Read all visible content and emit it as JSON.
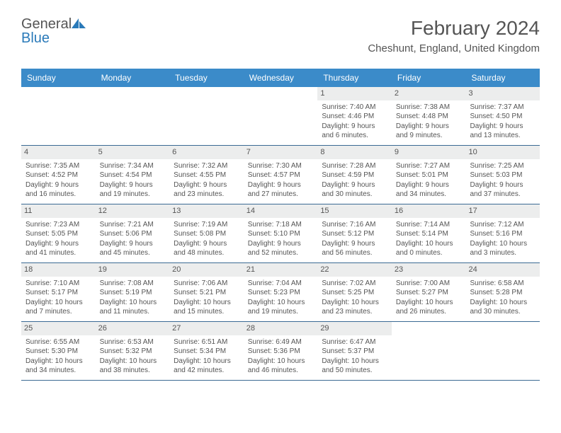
{
  "logo": {
    "word1": "General",
    "word2": "Blue"
  },
  "header": {
    "title": "February 2024",
    "location": "Cheshunt, England, United Kingdom"
  },
  "dayNames": [
    "Sunday",
    "Monday",
    "Tuesday",
    "Wednesday",
    "Thursday",
    "Friday",
    "Saturday"
  ],
  "colors": {
    "headerBar": "#3b8bc9",
    "rowDivider": "#3b6a94",
    "dayNumberBg": "#eceded",
    "text": "#555555",
    "logoBlue": "#2a7ab9"
  },
  "days": [
    {
      "n": 1,
      "sunrise": "7:40 AM",
      "sunset": "4:46 PM",
      "daylight": "9 hours and 6 minutes."
    },
    {
      "n": 2,
      "sunrise": "7:38 AM",
      "sunset": "4:48 PM",
      "daylight": "9 hours and 9 minutes."
    },
    {
      "n": 3,
      "sunrise": "7:37 AM",
      "sunset": "4:50 PM",
      "daylight": "9 hours and 13 minutes."
    },
    {
      "n": 4,
      "sunrise": "7:35 AM",
      "sunset": "4:52 PM",
      "daylight": "9 hours and 16 minutes."
    },
    {
      "n": 5,
      "sunrise": "7:34 AM",
      "sunset": "4:54 PM",
      "daylight": "9 hours and 19 minutes."
    },
    {
      "n": 6,
      "sunrise": "7:32 AM",
      "sunset": "4:55 PM",
      "daylight": "9 hours and 23 minutes."
    },
    {
      "n": 7,
      "sunrise": "7:30 AM",
      "sunset": "4:57 PM",
      "daylight": "9 hours and 27 minutes."
    },
    {
      "n": 8,
      "sunrise": "7:28 AM",
      "sunset": "4:59 PM",
      "daylight": "9 hours and 30 minutes."
    },
    {
      "n": 9,
      "sunrise": "7:27 AM",
      "sunset": "5:01 PM",
      "daylight": "9 hours and 34 minutes."
    },
    {
      "n": 10,
      "sunrise": "7:25 AM",
      "sunset": "5:03 PM",
      "daylight": "9 hours and 37 minutes."
    },
    {
      "n": 11,
      "sunrise": "7:23 AM",
      "sunset": "5:05 PM",
      "daylight": "9 hours and 41 minutes."
    },
    {
      "n": 12,
      "sunrise": "7:21 AM",
      "sunset": "5:06 PM",
      "daylight": "9 hours and 45 minutes."
    },
    {
      "n": 13,
      "sunrise": "7:19 AM",
      "sunset": "5:08 PM",
      "daylight": "9 hours and 48 minutes."
    },
    {
      "n": 14,
      "sunrise": "7:18 AM",
      "sunset": "5:10 PM",
      "daylight": "9 hours and 52 minutes."
    },
    {
      "n": 15,
      "sunrise": "7:16 AM",
      "sunset": "5:12 PM",
      "daylight": "9 hours and 56 minutes."
    },
    {
      "n": 16,
      "sunrise": "7:14 AM",
      "sunset": "5:14 PM",
      "daylight": "10 hours and 0 minutes."
    },
    {
      "n": 17,
      "sunrise": "7:12 AM",
      "sunset": "5:16 PM",
      "daylight": "10 hours and 3 minutes."
    },
    {
      "n": 18,
      "sunrise": "7:10 AM",
      "sunset": "5:17 PM",
      "daylight": "10 hours and 7 minutes."
    },
    {
      "n": 19,
      "sunrise": "7:08 AM",
      "sunset": "5:19 PM",
      "daylight": "10 hours and 11 minutes."
    },
    {
      "n": 20,
      "sunrise": "7:06 AM",
      "sunset": "5:21 PM",
      "daylight": "10 hours and 15 minutes."
    },
    {
      "n": 21,
      "sunrise": "7:04 AM",
      "sunset": "5:23 PM",
      "daylight": "10 hours and 19 minutes."
    },
    {
      "n": 22,
      "sunrise": "7:02 AM",
      "sunset": "5:25 PM",
      "daylight": "10 hours and 23 minutes."
    },
    {
      "n": 23,
      "sunrise": "7:00 AM",
      "sunset": "5:27 PM",
      "daylight": "10 hours and 26 minutes."
    },
    {
      "n": 24,
      "sunrise": "6:58 AM",
      "sunset": "5:28 PM",
      "daylight": "10 hours and 30 minutes."
    },
    {
      "n": 25,
      "sunrise": "6:55 AM",
      "sunset": "5:30 PM",
      "daylight": "10 hours and 34 minutes."
    },
    {
      "n": 26,
      "sunrise": "6:53 AM",
      "sunset": "5:32 PM",
      "daylight": "10 hours and 38 minutes."
    },
    {
      "n": 27,
      "sunrise": "6:51 AM",
      "sunset": "5:34 PM",
      "daylight": "10 hours and 42 minutes."
    },
    {
      "n": 28,
      "sunrise": "6:49 AM",
      "sunset": "5:36 PM",
      "daylight": "10 hours and 46 minutes."
    },
    {
      "n": 29,
      "sunrise": "6:47 AM",
      "sunset": "5:37 PM",
      "daylight": "10 hours and 50 minutes."
    }
  ],
  "layout": {
    "firstWeekday": 4,
    "labels": {
      "sunrise": "Sunrise: ",
      "sunset": "Sunset: ",
      "daylight": "Daylight: "
    }
  }
}
